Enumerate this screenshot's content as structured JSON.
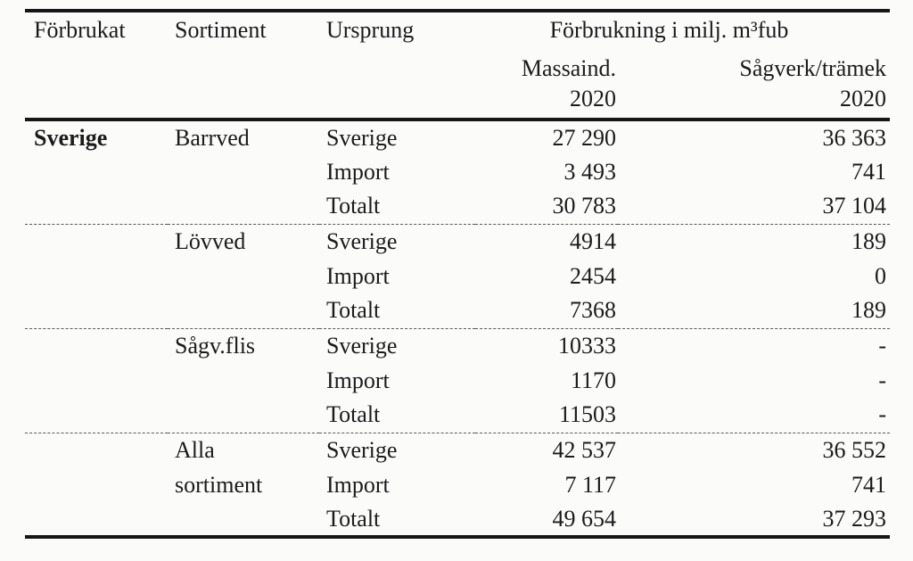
{
  "table": {
    "header": {
      "forbrukat": "Förbrukat",
      "sortiment": "Sortiment",
      "ursprung": "Ursprung",
      "consumption_span": "Förbrukning i milj. m³fub",
      "massaind": "Massaind.",
      "sagverk": "Sågverk/trämek",
      "year_massaind": "2020",
      "year_sagverk": "2020"
    },
    "groups": [
      {
        "forbrukat": "Sverige",
        "sortiment": [
          "Barrved",
          ""
        ],
        "rows": [
          [
            "Sverige",
            "27 290",
            "36 363"
          ],
          [
            "Import",
            "3 493",
            "741"
          ],
          [
            "Totalt",
            "30 783",
            "37 104"
          ]
        ]
      },
      {
        "forbrukat": "",
        "sortiment": [
          "Lövved",
          ""
        ],
        "rows": [
          [
            "Sverige",
            "4914",
            "189"
          ],
          [
            "Import",
            "2454",
            "0"
          ],
          [
            "Totalt",
            "7368",
            "189"
          ]
        ]
      },
      {
        "forbrukat": "",
        "sortiment": [
          "Sågv.flis",
          ""
        ],
        "rows": [
          [
            "Sverige",
            "10333",
            "-"
          ],
          [
            "Import",
            "1170",
            "-"
          ],
          [
            "Totalt",
            "11503",
            "-"
          ]
        ]
      },
      {
        "forbrukat": "",
        "sortiment": [
          "Alla",
          "sortiment"
        ],
        "rows": [
          [
            "Sverige",
            "42 537",
            "36 552"
          ],
          [
            "Import",
            "7 117",
            "741"
          ],
          [
            "Totalt",
            "49 654",
            "37 293"
          ]
        ]
      }
    ]
  }
}
